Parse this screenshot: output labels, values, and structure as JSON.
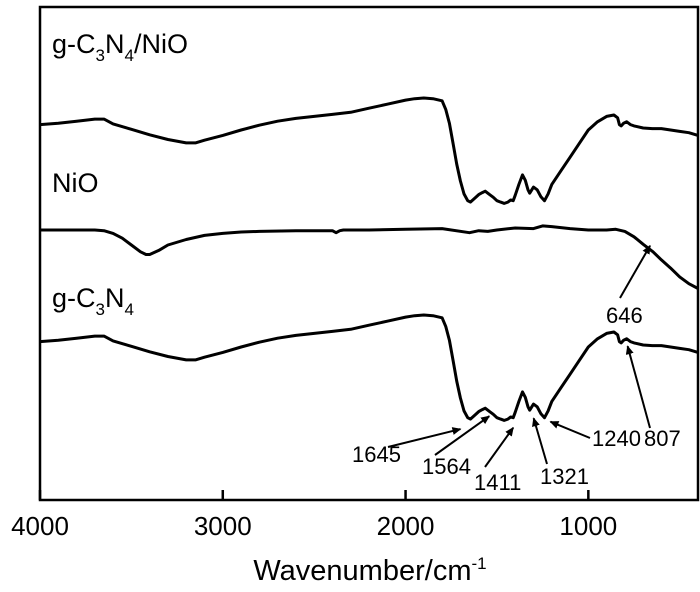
{
  "chart_data": {
    "type": "line",
    "title": "",
    "xlabel": "Wavenumber/cm",
    "xlabel_sup": "-1",
    "ylabel": "",
    "xlim": [
      4000,
      400
    ],
    "x_reversed": true,
    "x_ticks": [
      4000,
      3000,
      2000,
      1000
    ],
    "x_tick_labels": [
      "4000",
      "3000",
      "2000",
      "1000"
    ],
    "y_ticks_shown": false,
    "grid": false,
    "legend": "none",
    "line_color": "#000000",
    "series_label_parts": [
      [
        "g-C",
        "3",
        "N",
        "4",
        "/NiO"
      ],
      [
        "NiO"
      ],
      [
        "g-C",
        "3",
        "N",
        "4"
      ]
    ],
    "series": [
      {
        "offset": 100,
        "x": [
          4000,
          3900,
          3800,
          3700,
          3650,
          3600,
          3500,
          3400,
          3300,
          3200,
          3150,
          3100,
          3000,
          2900,
          2800,
          2700,
          2600,
          2500,
          2400,
          2300,
          2200,
          2100,
          2000,
          1950,
          1900,
          1850,
          1800,
          1780,
          1760,
          1740,
          1720,
          1700,
          1680,
          1660,
          1645,
          1620,
          1600,
          1580,
          1564,
          1540,
          1520,
          1500,
          1480,
          1460,
          1440,
          1425,
          1411,
          1400,
          1380,
          1360,
          1345,
          1330,
          1321,
          1300,
          1280,
          1260,
          1240,
          1220,
          1200,
          1150,
          1100,
          1050,
          1000,
          950,
          900,
          860,
          840,
          830,
          820,
          807,
          790,
          770,
          750,
          700,
          650,
          600,
          550,
          500,
          450,
          400
        ],
        "values": [
          8,
          10,
          13,
          16,
          16,
          9,
          1,
          -7,
          -14,
          -19,
          -19,
          -15,
          -8,
          0,
          7,
          13,
          17,
          20,
          23,
          26,
          32,
          38,
          44,
          46,
          47,
          46,
          43,
          30,
          10,
          -20,
          -50,
          -75,
          -94,
          -104,
          -106,
          -100,
          -95,
          -92,
          -90,
          -95,
          -99,
          -104,
          -106,
          -108,
          -106,
          -103,
          -104,
          -96,
          -80,
          -66,
          -74,
          -88,
          -93,
          -84,
          -88,
          -98,
          -104,
          -94,
          -80,
          -60,
          -40,
          -20,
          0,
          12,
          20,
          22,
          18,
          8,
          6,
          10,
          12,
          8,
          6,
          3,
          2,
          2,
          0,
          -2,
          -4,
          -8
        ]
      },
      {
        "offset": 0,
        "x": [
          4000,
          3800,
          3700,
          3650,
          3600,
          3550,
          3500,
          3450,
          3420,
          3400,
          3350,
          3300,
          3200,
          3100,
          3000,
          2900,
          2800,
          2600,
          2400,
          2380,
          2360,
          2340,
          2300,
          2200,
          2000,
          1800,
          1650,
          1600,
          1550,
          1500,
          1400,
          1300,
          1250,
          1200,
          1100,
          1000,
          900,
          850,
          800,
          750,
          700,
          646,
          600,
          550,
          500,
          450,
          400
        ],
        "values": [
          0,
          0,
          0,
          -1,
          -5,
          -12,
          -22,
          -32,
          -36,
          -36,
          -30,
          -22,
          -14,
          -8,
          -5,
          -3,
          -2,
          -1,
          -1,
          -4,
          -1,
          0,
          0,
          0,
          1,
          2,
          -4,
          -1,
          -2,
          0,
          3,
          2,
          6,
          5,
          2,
          0,
          0,
          1,
          -2,
          -10,
          -21,
          -32,
          -44,
          -56,
          -69,
          -79,
          -86
        ]
      },
      {
        "offset": -100,
        "x": [
          4000,
          3900,
          3800,
          3700,
          3650,
          3600,
          3500,
          3400,
          3300,
          3200,
          3150,
          3100,
          3000,
          2900,
          2800,
          2700,
          2600,
          2500,
          2400,
          2300,
          2200,
          2100,
          2000,
          1950,
          1900,
          1850,
          1800,
          1780,
          1760,
          1740,
          1720,
          1700,
          1680,
          1660,
          1645,
          1620,
          1600,
          1580,
          1564,
          1540,
          1520,
          1500,
          1480,
          1460,
          1440,
          1425,
          1411,
          1400,
          1380,
          1360,
          1345,
          1330,
          1321,
          1300,
          1280,
          1260,
          1240,
          1220,
          1200,
          1150,
          1100,
          1050,
          1000,
          950,
          900,
          860,
          840,
          830,
          820,
          807,
          790,
          770,
          750,
          700,
          650,
          600,
          550,
          500,
          450,
          400
        ],
        "values": [
          8,
          10,
          13,
          16,
          16,
          9,
          1,
          -7,
          -14,
          -19,
          -19,
          -15,
          -8,
          0,
          7,
          13,
          17,
          20,
          23,
          26,
          32,
          38,
          44,
          46,
          47,
          46,
          43,
          30,
          10,
          -20,
          -50,
          -75,
          -94,
          -104,
          -106,
          -100,
          -95,
          -92,
          -90,
          -95,
          -99,
          -104,
          -106,
          -108,
          -106,
          -103,
          -104,
          -96,
          -80,
          -66,
          -74,
          -88,
          -93,
          -84,
          -88,
          -98,
          -104,
          -94,
          -80,
          -60,
          -40,
          -20,
          0,
          12,
          20,
          22,
          18,
          8,
          6,
          10,
          12,
          8,
          6,
          3,
          2,
          2,
          0,
          -2,
          -4,
          -8
        ]
      }
    ],
    "annotations": [
      {
        "x": 1645,
        "label": "1645"
      },
      {
        "x": 1564,
        "label": "1564"
      },
      {
        "x": 1411,
        "label": "1411"
      },
      {
        "x": 1321,
        "label": "1321"
      },
      {
        "x": 1240,
        "label": "1240"
      },
      {
        "x": 807,
        "label": "807"
      },
      {
        "x": 646,
        "label": "646"
      }
    ]
  }
}
